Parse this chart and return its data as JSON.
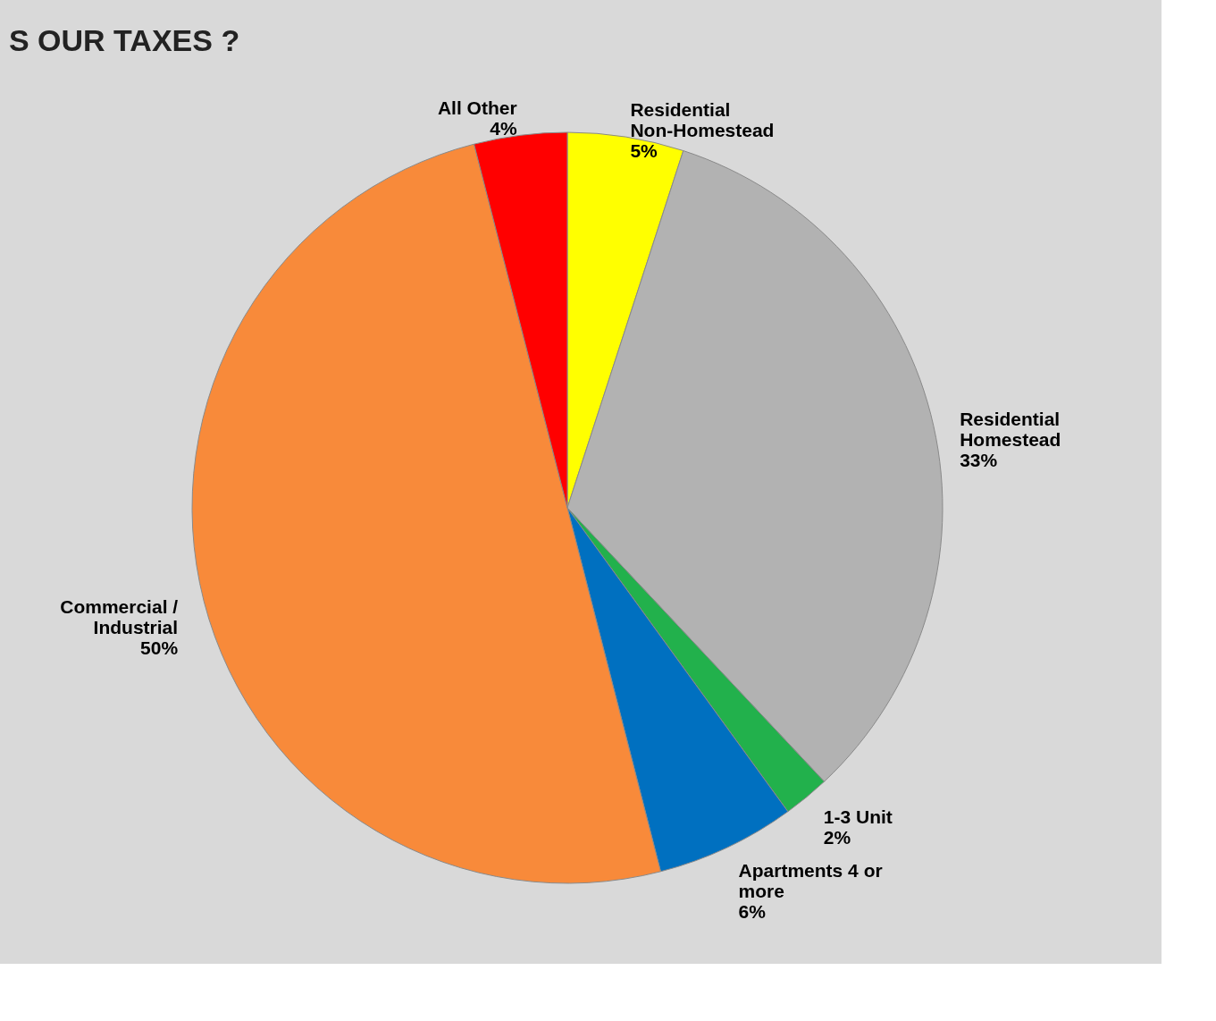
{
  "chart_data": {
    "type": "pie",
    "title": "S OUR TAXES ?",
    "categories": [
      "Residential Non-Homestead",
      "Residential Homestead",
      "1-3 Unit",
      "Apartments 4 or more",
      "Commercial / Industrial",
      "All Other"
    ],
    "values": [
      5,
      33,
      2,
      6,
      50,
      4
    ],
    "value_labels": [
      "5%",
      "33%",
      "2%",
      "6%",
      "50%",
      "4%"
    ],
    "colors": [
      "#ffff00",
      "#b2b2b2",
      "#22b14c",
      "#0070c0",
      "#f88a3a",
      "#ff0000"
    ],
    "legend": false
  }
}
